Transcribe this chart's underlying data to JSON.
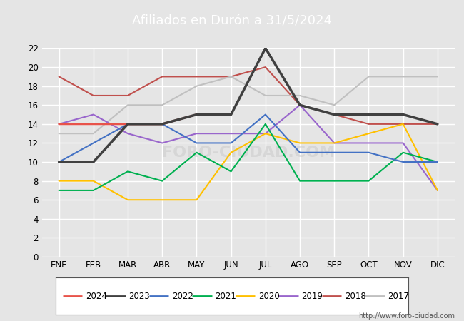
{
  "title": "Afiliados en Durón a 31/5/2024",
  "title_bg_color": "#4472c4",
  "title_text_color": "white",
  "months": [
    "ENE",
    "FEB",
    "MAR",
    "ABR",
    "MAY",
    "JUN",
    "JUL",
    "AGO",
    "SEP",
    "OCT",
    "NOV",
    "DIC"
  ],
  "ylim": [
    0,
    22
  ],
  "yticks": [
    0,
    2,
    4,
    6,
    8,
    10,
    12,
    14,
    16,
    18,
    20,
    22
  ],
  "url_text": "http://www.foro-ciudad.com",
  "series": {
    "2024": {
      "color": "#e8534a",
      "linewidth": 2.0,
      "data": [
        14,
        14,
        14,
        14,
        15,
        null,
        null,
        null,
        null,
        null,
        null,
        null
      ]
    },
    "2023": {
      "color": "#404040",
      "linewidth": 2.5,
      "data": [
        10,
        10,
        14,
        14,
        15,
        15,
        22,
        16,
        15,
        15,
        15,
        14
      ]
    },
    "2022": {
      "color": "#4472c4",
      "linewidth": 1.5,
      "data": [
        10,
        12,
        14,
        14,
        12,
        12,
        15,
        11,
        11,
        11,
        10,
        10
      ]
    },
    "2021": {
      "color": "#00b050",
      "linewidth": 1.5,
      "data": [
        7,
        7,
        9,
        8,
        11,
        9,
        14,
        8,
        8,
        8,
        11,
        10
      ]
    },
    "2020": {
      "color": "#ffc000",
      "linewidth": 1.5,
      "data": [
        8,
        8,
        6,
        6,
        6,
        11,
        13,
        12,
        12,
        13,
        14,
        7
      ]
    },
    "2019": {
      "color": "#9966cc",
      "linewidth": 1.5,
      "data": [
        14,
        15,
        13,
        12,
        13,
        13,
        13,
        16,
        12,
        12,
        12,
        7
      ]
    },
    "2018": {
      "color": "#c0504d",
      "linewidth": 1.5,
      "data": [
        19,
        17,
        17,
        19,
        19,
        19,
        20,
        16,
        15,
        14,
        14,
        14
      ]
    },
    "2017": {
      "color": "#c0c0c0",
      "linewidth": 1.5,
      "data": [
        13,
        13,
        16,
        16,
        18,
        19,
        17,
        17,
        16,
        19,
        19,
        19
      ]
    }
  },
  "legend_years": [
    "2024",
    "2023",
    "2022",
    "2021",
    "2020",
    "2019",
    "2018",
    "2017"
  ],
  "background_color": "#e5e5e5",
  "plot_bg_color": "#e5e5e5",
  "grid_color": "white",
  "figsize": [
    6.5,
    4.5
  ],
  "dpi": 100
}
